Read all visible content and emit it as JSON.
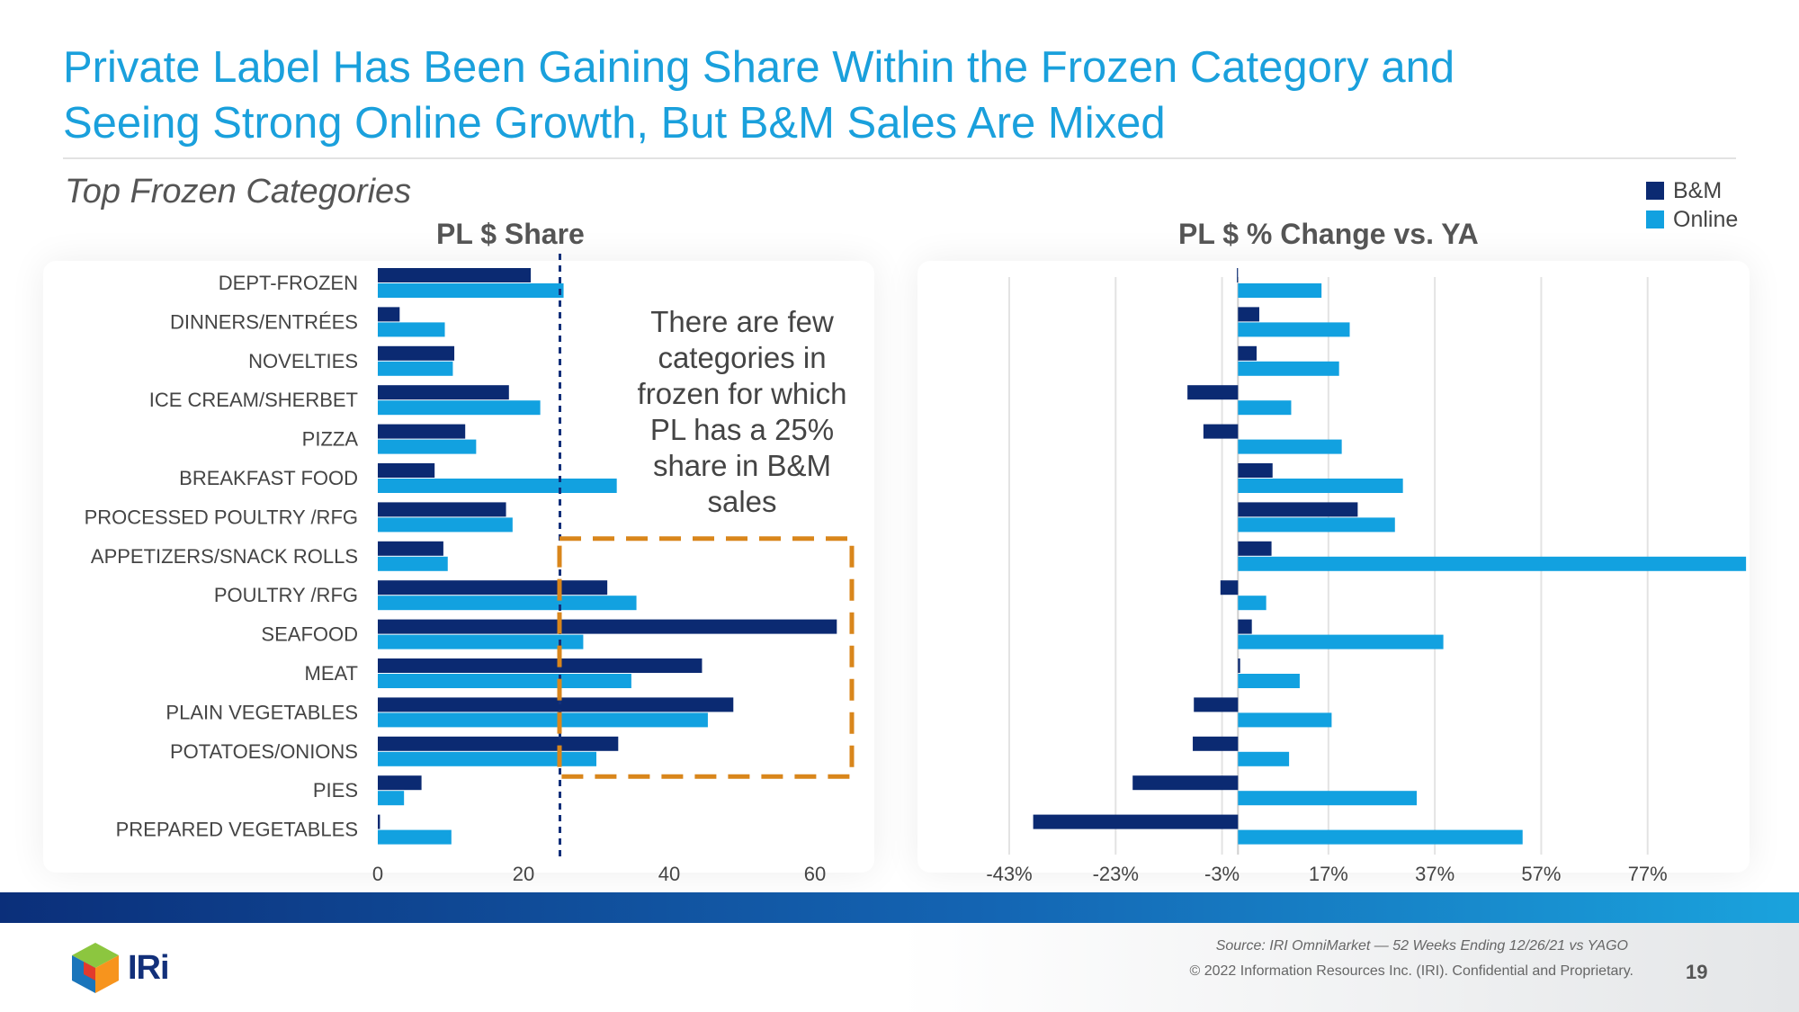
{
  "header": {
    "title": "Private Label Has Been Gaining Share Within the Frozen Category and Seeing Strong Online Growth, But B&M Sales Are Mixed",
    "subtitle": "Top Frozen Categories"
  },
  "legend": [
    {
      "label": "B&M",
      "color": "#0b2a72"
    },
    {
      "label": "Online",
      "color": "#12a1e0"
    }
  ],
  "callout": {
    "text": "There are few categories in frozen for which PL has a 25% share in B&M sales"
  },
  "chart_data": [
    {
      "type": "bar",
      "orientation": "horizontal",
      "title": "PL $ Share",
      "categories": [
        "DEPT-FROZEN",
        "DINNERS/ENTRÉES",
        "NOVELTIES",
        "ICE CREAM/SHERBET",
        "PIZZA",
        "BREAKFAST FOOD",
        "PROCESSED POULTRY /RFG",
        "APPETIZERS/SNACK ROLLS",
        "POULTRY /RFG",
        "SEAFOOD",
        "MEAT",
        "PLAIN VEGETABLES",
        "POTATOES/ONIONS",
        "PIES",
        "PREPARED VEGETABLES"
      ],
      "series": [
        {
          "name": "B&M",
          "values": [
            21,
            3,
            10.5,
            18,
            12,
            7.8,
            17.6,
            9,
            31.5,
            63,
            44.5,
            48.8,
            33,
            6,
            0.3
          ]
        },
        {
          "name": "Online",
          "values": [
            25.5,
            9.2,
            10.3,
            22.3,
            13.5,
            32.8,
            18.5,
            9.6,
            35.5,
            28.2,
            34.8,
            45.3,
            30,
            3.6,
            10.1
          ]
        }
      ],
      "xlim": [
        0,
        80
      ],
      "x_ticks": [
        "0",
        "20",
        "40",
        "60",
        "80"
      ],
      "reference_line": 25,
      "grid": false
    },
    {
      "type": "bar",
      "orientation": "horizontal",
      "title": "PL $ % Change vs. YA",
      "categories": [
        "DEPT-FROZEN",
        "DINNERS/ENTRÉES",
        "NOVELTIES",
        "ICE CREAM/SHERBET",
        "PIZZA",
        "BREAKFAST FOOD",
        "PROCESSED POULTRY /RFG",
        "APPETIZERS/SNACK ROLLS",
        "POULTRY /RFG",
        "SEAFOOD",
        "MEAT",
        "PLAIN VEGETABLES",
        "POTATOES/ONIONS",
        "PIES",
        "PREPARED VEGETABLES"
      ],
      "series": [
        {
          "name": "B&M",
          "values": [
            -0.2,
            4,
            3.5,
            -9.5,
            -6.5,
            6.5,
            22.5,
            6.3,
            -3.3,
            2.6,
            0.4,
            -8.3,
            -8.5,
            -19.8,
            -38.5
          ]
        },
        {
          "name": "Online",
          "values": [
            15.7,
            21,
            19,
            10,
            19.5,
            31,
            29.5,
            95.5,
            5.3,
            38.6,
            11.6,
            17.6,
            9.6,
            33.6,
            53.5
          ]
        }
      ],
      "xlim": [
        -43,
        97
      ],
      "x_ticks": [
        "-43%",
        "-23%",
        "-3%",
        "17%",
        "37%",
        "57%",
        "77%"
      ],
      "grid": true
    }
  ],
  "footer": {
    "source": "Source: IRI OmniMarket — 52 Weeks Ending 12/26/21 vs YAGO",
    "copyright": "© 2022 Information Resources Inc. (IRI). Confidential and Proprietary.",
    "page": "19",
    "logo_text": "IRi"
  }
}
